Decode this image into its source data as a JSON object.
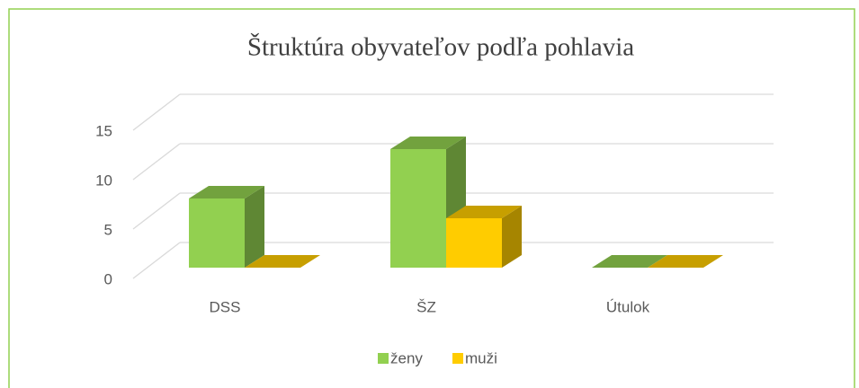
{
  "chart_data": {
    "type": "bar3d",
    "title": "Štruktúra obyvateľov podľa pohlavia",
    "categories": [
      "DSS",
      "ŠZ",
      "Útulok"
    ],
    "series": [
      {
        "name": "ženy",
        "color": "#92d050",
        "values": [
          7,
          12,
          0
        ]
      },
      {
        "name": "muži",
        "color": "#ffcc00",
        "values": [
          0,
          5,
          0
        ]
      }
    ],
    "ylim": [
      0,
      15
    ],
    "yticks": [
      0,
      5,
      10,
      15
    ],
    "grid": true,
    "legend": "bottom"
  }
}
